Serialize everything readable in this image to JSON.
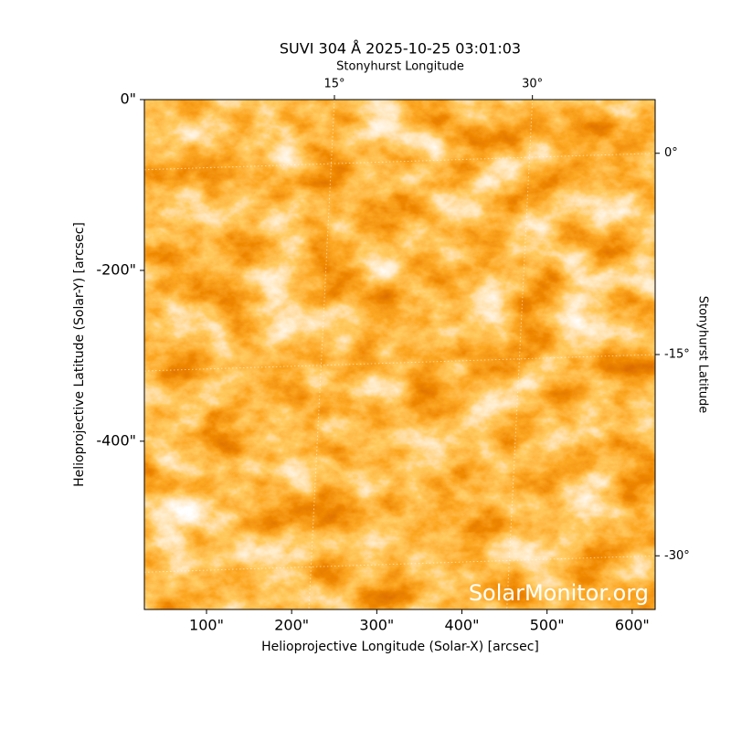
{
  "chart_data": {
    "type": "image",
    "title": "SUVI 304 Å 2025-10-25 03:01:03",
    "xlabel": "Helioprojective Longitude (Solar-X) [arcsec]",
    "ylabel": "Helioprojective Latitude (Solar-Y) [arcsec]",
    "x2label": "Stonyhurst Longitude",
    "y2label": "Stonyhurst Latitude",
    "watermark": "SolarMonitor.org",
    "xlim": [
      27,
      627
    ],
    "ylim": [
      -597,
      0
    ],
    "xticks": [
      {
        "value": 100,
        "label": "100\""
      },
      {
        "value": 200,
        "label": "200\""
      },
      {
        "value": 300,
        "label": "300\""
      },
      {
        "value": 400,
        "label": "400\""
      },
      {
        "value": 500,
        "label": "500\""
      },
      {
        "value": 600,
        "label": "600\""
      }
    ],
    "yticks": [
      {
        "value": 0,
        "label": "0\""
      },
      {
        "value": -200,
        "label": "-200\""
      },
      {
        "value": -400,
        "label": "-400\""
      }
    ],
    "x2lim": [
      0.6,
      39.3
    ],
    "x2ticks": [
      {
        "value": 15,
        "label": "15°"
      },
      {
        "value": 30,
        "label": "30°"
      }
    ],
    "y2lim": [
      4,
      -34
    ],
    "y2ticks": [
      {
        "value": 0,
        "label": "0°"
      },
      {
        "value": -15,
        "label": "-15°"
      },
      {
        "value": -30,
        "label": "-30°"
      }
    ],
    "grid": true
  }
}
